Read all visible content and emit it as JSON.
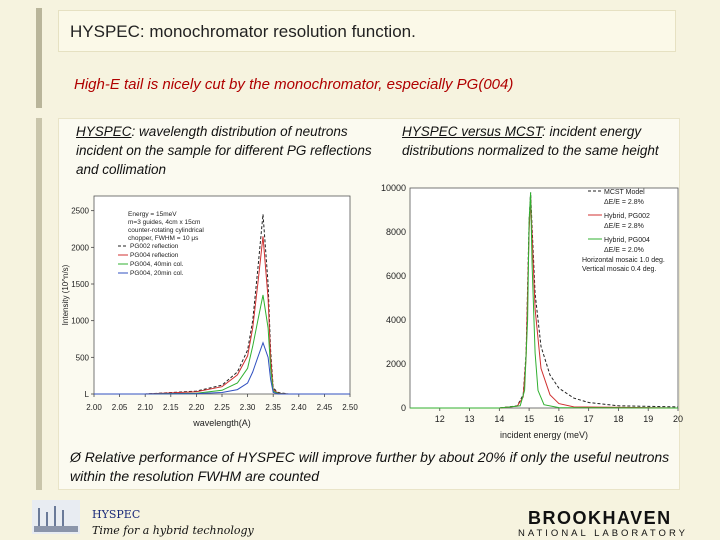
{
  "title": "HYSPEC: monochromator resolution function.",
  "subtitle": "High-E tail is nicely cut by the monochromator, especially PG(004)",
  "left_caption": {
    "underlined": "HYSPEC",
    "rest": ": wavelength distribution of neutrons incident on the sample for different PG reflections and collimation"
  },
  "right_caption": {
    "underlined": "HYSPEC versus MCST",
    "rest": ": incident energy distributions normalized to the same height"
  },
  "note": "Ø Relative performance of HYSPEC will improve further by about 20% if only the useful neutrons within the resolution FWHM are counted",
  "footer": {
    "name": "HYSPEC",
    "tagline": "Time for a hybrid technology",
    "lab": "BROOKHAVEN",
    "lab_sub": "NATIONAL LABORATORY"
  },
  "colors": {
    "title_text": "#222222",
    "subtitle_text": "#b00000",
    "footer_name": "#1a2a7a"
  },
  "chart_data": [
    {
      "type": "line",
      "title": "",
      "xlabel": "wavelength(A)",
      "ylabel": "Intensity (10^n/s)",
      "xlim": [
        2.0,
        2.5
      ],
      "ylim": [
        0,
        2700
      ],
      "x_ticks": [
        "2.00",
        "2.05",
        "2.10",
        "2.15",
        "2.20",
        "2.25",
        "2.30",
        "2.35",
        "2.40",
        "2.45",
        "2.50"
      ],
      "x_tick_values": [
        2.0,
        2.05,
        2.1,
        2.15,
        2.2,
        2.25,
        2.3,
        2.35,
        2.4,
        2.45,
        2.5
      ],
      "y_ticks": [
        "L",
        "500",
        "1000",
        "1500",
        "2000",
        "2500"
      ],
      "y_tick_values": [
        0,
        500,
        1000,
        1500,
        2000,
        2500
      ],
      "legend_text": [
        "Energy = 15meV",
        "m=3 guides, 4cm x 15cm",
        "counter-rotating cylindrical",
        "chopper, FWHM = 10 μs"
      ],
      "series": [
        {
          "name": "PG002 reflection",
          "color": "#222222",
          "dash": "3,2",
          "x": [
            2.0,
            2.1,
            2.2,
            2.25,
            2.28,
            2.3,
            2.31,
            2.32,
            2.33,
            2.34,
            2.345,
            2.35,
            2.36,
            2.38,
            2.5
          ],
          "y": [
            0,
            0,
            40,
            120,
            300,
            600,
            1000,
            1700,
            2450,
            1500,
            600,
            80,
            20,
            0,
            0
          ]
        },
        {
          "name": "PG004 reflection",
          "color": "#d03030",
          "dash": "",
          "x": [
            2.0,
            2.1,
            2.2,
            2.25,
            2.28,
            2.3,
            2.31,
            2.32,
            2.33,
            2.34,
            2.345,
            2.35,
            2.36,
            2.38,
            2.5
          ],
          "y": [
            0,
            0,
            30,
            100,
            260,
            520,
            900,
            1500,
            2150,
            1300,
            500,
            60,
            10,
            0,
            0
          ]
        },
        {
          "name": "PG004, 40min col.",
          "color": "#30b030",
          "dash": "",
          "x": [
            2.0,
            2.1,
            2.2,
            2.25,
            2.28,
            2.3,
            2.31,
            2.32,
            2.33,
            2.34,
            2.345,
            2.35,
            2.36,
            2.38,
            2.5
          ],
          "y": [
            0,
            0,
            10,
            50,
            150,
            350,
            650,
            1000,
            1350,
            900,
            350,
            40,
            5,
            0,
            0
          ]
        },
        {
          "name": "PG004, 20min col.",
          "color": "#3050c0",
          "dash": "",
          "x": [
            2.0,
            2.1,
            2.2,
            2.25,
            2.28,
            2.3,
            2.31,
            2.32,
            2.33,
            2.34,
            2.345,
            2.35,
            2.36,
            2.38,
            2.5
          ],
          "y": [
            0,
            0,
            5,
            20,
            60,
            150,
            300,
            500,
            700,
            500,
            200,
            20,
            0,
            0,
            0
          ]
        }
      ]
    },
    {
      "type": "line",
      "title": "",
      "xlabel": "incident energy (meV)",
      "ylabel": "",
      "xlim": [
        11,
        20
      ],
      "ylim": [
        0,
        10000
      ],
      "x_ticks": [
        "12",
        "13",
        "14",
        "15",
        "16",
        "17",
        "18",
        "19",
        "20"
      ],
      "x_tick_values": [
        12,
        13,
        14,
        15,
        16,
        17,
        18,
        19,
        20
      ],
      "y_ticks": [
        "0",
        "2000",
        "4000",
        "6000",
        "8000",
        "10000"
      ],
      "y_tick_values": [
        0,
        2000,
        4000,
        6000,
        8000,
        10000
      ],
      "legend_text": [
        "ΔE/E = 2.8%",
        "ΔE/E = 2.8%",
        "ΔE/E = 2.0%",
        "Horizontal mosaic 1.0 deg.",
        "Vertical mosaic 0.4 deg."
      ],
      "series": [
        {
          "name": "MCST Model",
          "color": "#222222",
          "dash": "3,2",
          "x": [
            11,
            14,
            14.6,
            14.8,
            14.9,
            15.0,
            15.05,
            15.1,
            15.2,
            15.4,
            15.7,
            16,
            16.5,
            17,
            18,
            20
          ],
          "y": [
            0,
            0,
            100,
            600,
            2500,
            8500,
            9800,
            8200,
            5200,
            2800,
            1500,
            900,
            450,
            250,
            100,
            50
          ]
        },
        {
          "name": "Hybrid, PG002",
          "color": "#d03030",
          "dash": "",
          "x": [
            11,
            14,
            14.6,
            14.8,
            14.9,
            15.0,
            15.05,
            15.1,
            15.2,
            15.4,
            15.7,
            16,
            16.5,
            20
          ],
          "y": [
            0,
            0,
            80,
            500,
            2300,
            8000,
            9600,
            7800,
            4500,
            1800,
            600,
            200,
            50,
            0
          ]
        },
        {
          "name": "Hybrid, PG004",
          "color": "#30b030",
          "dash": "",
          "x": [
            11,
            14,
            14.7,
            14.85,
            14.95,
            15.0,
            15.05,
            15.1,
            15.2,
            15.3,
            15.5,
            16,
            20
          ],
          "y": [
            0,
            0,
            100,
            800,
            4000,
            8500,
            9800,
            6500,
            2500,
            800,
            150,
            20,
            0
          ]
        }
      ]
    }
  ]
}
